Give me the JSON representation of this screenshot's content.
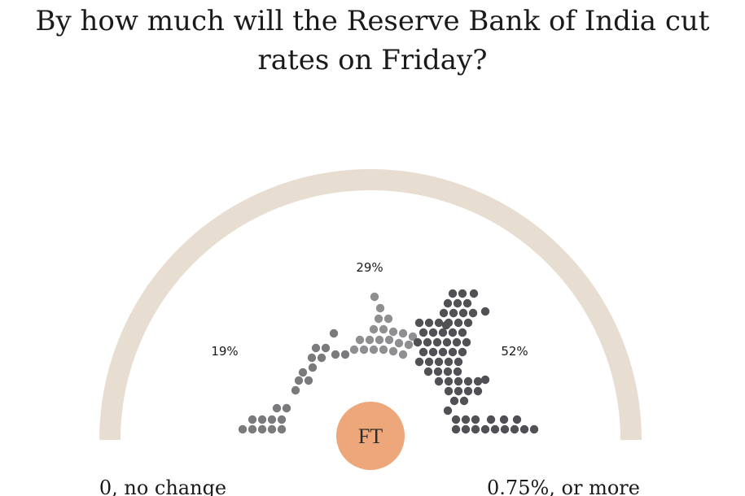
{
  "chart_data": {
    "type": "parliament",
    "title": "By how much will the Reserve Bank of India cut rates on Friday?",
    "series": [
      {
        "label": "0, no change",
        "value": 19,
        "value_label": "19%",
        "color": "#7a7a7d"
      },
      {
        "label": "",
        "value": 29,
        "value_label": "29%",
        "color": "#8f8f92"
      },
      {
        "label": "0.75%, or more",
        "value": 52,
        "value_label": "52%",
        "color": "#505055"
      }
    ],
    "axis": {
      "left_label": "0, no change",
      "right_label": "0.75%, or more"
    },
    "logo": {
      "text": "FT"
    },
    "colors": {
      "arc": "#e7ddd0",
      "logo_fill": "#eda77a"
    }
  }
}
